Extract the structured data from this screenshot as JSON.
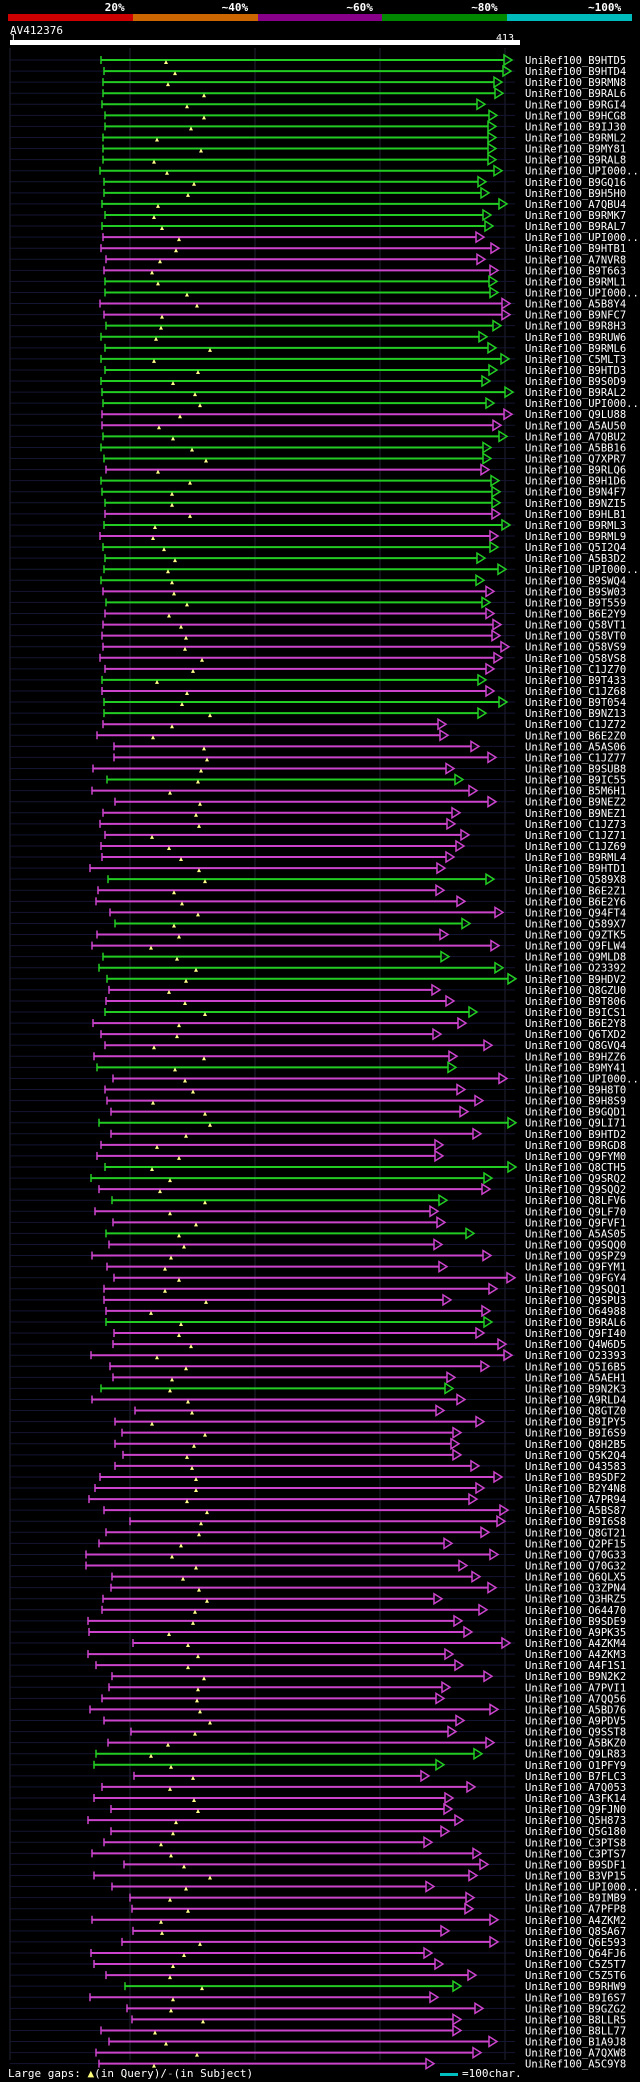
{
  "identity_bar": {
    "segments": [
      {
        "label": "20%",
        "color": "#cc0000"
      },
      {
        "label": "~40%",
        "color": "#cc6600"
      },
      {
        "label": "~60%",
        "color": "#880088"
      },
      {
        "label": "~80%",
        "color": "#008800"
      },
      {
        "label": "~100%",
        "color": "#00bbbb"
      }
    ]
  },
  "query": {
    "name": "AV412376",
    "start": "1",
    "end": "413"
  },
  "colors": {
    "green": "#22cc22",
    "magenta": "#cc44cc",
    "marker": "#ffff88"
  },
  "hits": [
    {
      "id": "UniRef100_B9HTD5",
      "c": "g"
    },
    {
      "id": "UniRef100_B9HTD4",
      "c": "g"
    },
    {
      "id": "UniRef100_B9RMN8",
      "c": "g"
    },
    {
      "id": "UniRef100_B9RAL6",
      "c": "g"
    },
    {
      "id": "UniRef100_B9RGI4",
      "c": "g"
    },
    {
      "id": "UniRef100_B9HCG8",
      "c": "g"
    },
    {
      "id": "UniRef100_B9IJ30",
      "c": "g"
    },
    {
      "id": "UniRef100_B9RML2",
      "c": "g"
    },
    {
      "id": "UniRef100_B9MY81",
      "c": "g"
    },
    {
      "id": "UniRef100_B9RAL8",
      "c": "g"
    },
    {
      "id": "UniRef100_UPI000..",
      "c": "g"
    },
    {
      "id": "UniRef100_B9GQ16",
      "c": "g"
    },
    {
      "id": "UniRef100_B9H5H0",
      "c": "g"
    },
    {
      "id": "UniRef100_A7QBU4",
      "c": "g"
    },
    {
      "id": "UniRef100_B9RMK7",
      "c": "g"
    },
    {
      "id": "UniRef100_B9RAL7",
      "c": "g"
    },
    {
      "id": "UniRef100_UPI000..",
      "c": "m"
    },
    {
      "id": "UniRef100_B9HTB1",
      "c": "m"
    },
    {
      "id": "UniRef100_A7NVR8",
      "c": "m"
    },
    {
      "id": "UniRef100_B9T663",
      "c": "m"
    },
    {
      "id": "UniRef100_B9RML1",
      "c": "g"
    },
    {
      "id": "UniRef100_UPI000..",
      "c": "g"
    },
    {
      "id": "UniRef100_A5B8Y4",
      "c": "m"
    },
    {
      "id": "UniRef100_B9NFC7",
      "c": "m"
    },
    {
      "id": "UniRef100_B9R8H3",
      "c": "g"
    },
    {
      "id": "UniRef100_B9RUW6",
      "c": "g"
    },
    {
      "id": "UniRef100_B9RML6",
      "c": "g"
    },
    {
      "id": "UniRef100_C5MLT3",
      "c": "g"
    },
    {
      "id": "UniRef100_B9HTD3",
      "c": "g"
    },
    {
      "id": "UniRef100_B9S0D9",
      "c": "g"
    },
    {
      "id": "UniRef100_B9RAL2",
      "c": "g"
    },
    {
      "id": "UniRef100_UPI000..",
      "c": "g"
    },
    {
      "id": "UniRef100_Q9LU88",
      "c": "m"
    },
    {
      "id": "UniRef100_A5AU50",
      "c": "m"
    },
    {
      "id": "UniRef100_A7QBU2",
      "c": "g"
    },
    {
      "id": "UniRef100_A5BB16",
      "c": "g"
    },
    {
      "id": "UniRef100_Q7XPR7",
      "c": "g"
    },
    {
      "id": "UniRef100_B9RLQ6",
      "c": "m"
    },
    {
      "id": "UniRef100_B9H1D6",
      "c": "g"
    },
    {
      "id": "UniRef100_B9N4F7",
      "c": "g"
    },
    {
      "id": "UniRef100_B9NZI5",
      "c": "g"
    },
    {
      "id": "UniRef100_B9HLB1",
      "c": "m"
    },
    {
      "id": "UniRef100_B9RML3",
      "c": "g"
    },
    {
      "id": "UniRef100_B9RML9",
      "c": "m"
    },
    {
      "id": "UniRef100_Q5I2Q4",
      "c": "g"
    },
    {
      "id": "UniRef100_A5B3D2",
      "c": "g"
    },
    {
      "id": "UniRef100_UPI000..",
      "c": "g"
    },
    {
      "id": "UniRef100_B9SWQ4",
      "c": "g"
    },
    {
      "id": "UniRef100_B9SW03",
      "c": "m"
    },
    {
      "id": "UniRef100_B9T559",
      "c": "g"
    },
    {
      "id": "UniRef100_B6E2Y9",
      "c": "m"
    },
    {
      "id": "UniRef100_Q58VT1",
      "c": "m"
    },
    {
      "id": "UniRef100_Q58VT0",
      "c": "m"
    },
    {
      "id": "UniRef100_Q58VS9",
      "c": "m"
    },
    {
      "id": "UniRef100_Q58VS8",
      "c": "m"
    },
    {
      "id": "UniRef100_C1JZ70",
      "c": "m"
    },
    {
      "id": "UniRef100_B9T433",
      "c": "g"
    },
    {
      "id": "UniRef100_C1JZ68",
      "c": "m"
    },
    {
      "id": "UniRef100_B9T054",
      "c": "g"
    },
    {
      "id": "UniRef100_B9NZ13",
      "c": "g"
    },
    {
      "id": "UniRef100_C1JZ72",
      "c": "m"
    },
    {
      "id": "UniRef100_B6E2Z0",
      "c": "m"
    },
    {
      "id": "UniRef100_A5AS06",
      "c": "m"
    },
    {
      "id": "UniRef100_C1JZ77",
      "c": "m"
    },
    {
      "id": "UniRef100_B9SUB8",
      "c": "m"
    },
    {
      "id": "UniRef100_B9IC55",
      "c": "g"
    },
    {
      "id": "UniRef100_B5M6H1",
      "c": "m"
    },
    {
      "id": "UniRef100_B9NEZ2",
      "c": "m"
    },
    {
      "id": "UniRef100_B9NEZ1",
      "c": "m"
    },
    {
      "id": "UniRef100_C1JZ73",
      "c": "m"
    },
    {
      "id": "UniRef100_C1JZ71",
      "c": "m"
    },
    {
      "id": "UniRef100_C1JZ69",
      "c": "m"
    },
    {
      "id": "UniRef100_B9RML4",
      "c": "m"
    },
    {
      "id": "UniRef100_B9HTD1",
      "c": "m"
    },
    {
      "id": "UniRef100_Q589X8",
      "c": "g"
    },
    {
      "id": "UniRef100_B6E2Z1",
      "c": "m"
    },
    {
      "id": "UniRef100_B6E2Y6",
      "c": "m"
    },
    {
      "id": "UniRef100_Q94FT4",
      "c": "m"
    },
    {
      "id": "UniRef100_Q589X7",
      "c": "g"
    },
    {
      "id": "UniRef100_Q9ZTK5",
      "c": "m"
    },
    {
      "id": "UniRef100_Q9FLW4",
      "c": "m"
    },
    {
      "id": "UniRef100_Q9MLD8",
      "c": "g"
    },
    {
      "id": "UniRef100_O23392",
      "c": "g"
    },
    {
      "id": "UniRef100_B9HDV2",
      "c": "g"
    },
    {
      "id": "UniRef100_Q8GZU0",
      "c": "m"
    },
    {
      "id": "UniRef100_B9T806",
      "c": "m"
    },
    {
      "id": "UniRef100_B9ICS1",
      "c": "g"
    },
    {
      "id": "UniRef100_B6E2Y8",
      "c": "m"
    },
    {
      "id": "UniRef100_Q6TXD2",
      "c": "m"
    },
    {
      "id": "UniRef100_Q8GVQ4",
      "c": "m"
    },
    {
      "id": "UniRef100_B9HZZ6",
      "c": "m"
    },
    {
      "id": "UniRef100_B9MY41",
      "c": "g"
    },
    {
      "id": "UniRef100_UPI000..",
      "c": "m"
    },
    {
      "id": "UniRef100_B9H8T0",
      "c": "m"
    },
    {
      "id": "UniRef100_B9H8S9",
      "c": "m"
    },
    {
      "id": "UniRef100_B9GQD1",
      "c": "m"
    },
    {
      "id": "UniRef100_Q9LI71",
      "c": "g"
    },
    {
      "id": "UniRef100_B9HTD2",
      "c": "m"
    },
    {
      "id": "UniRef100_B9RGD8",
      "c": "m"
    },
    {
      "id": "UniRef100_Q9FYM0",
      "c": "m"
    },
    {
      "id": "UniRef100_Q8CTH5",
      "c": "g"
    },
    {
      "id": "UniRef100_Q9SRQ2",
      "c": "g"
    },
    {
      "id": "UniRef100_Q9SQQ2",
      "c": "m"
    },
    {
      "id": "UniRef100_Q8LFV6",
      "c": "g"
    },
    {
      "id": "UniRef100_Q9LF70",
      "c": "m"
    },
    {
      "id": "UniRef100_Q9FVF1",
      "c": "m"
    },
    {
      "id": "UniRef100_A5AS05",
      "c": "g"
    },
    {
      "id": "UniRef100_Q9SQQ0",
      "c": "m"
    },
    {
      "id": "UniRef100_Q9SPZ9",
      "c": "m"
    },
    {
      "id": "UniRef100_Q9FYM1",
      "c": "m"
    },
    {
      "id": "UniRef100_Q9FGY4",
      "c": "m"
    },
    {
      "id": "UniRef100_Q9SQQ1",
      "c": "m"
    },
    {
      "id": "UniRef100_Q9SPU3",
      "c": "m"
    },
    {
      "id": "UniRef100_O64988",
      "c": "m"
    },
    {
      "id": "UniRef100_B9RAL6",
      "c": "g"
    },
    {
      "id": "UniRef100_Q9FI40",
      "c": "m"
    },
    {
      "id": "UniRef100_Q4W6D5",
      "c": "m"
    },
    {
      "id": "UniRef100_O23393",
      "c": "m"
    },
    {
      "id": "UniRef100_Q5I6B5",
      "c": "m"
    },
    {
      "id": "UniRef100_A5AEH1",
      "c": "m"
    },
    {
      "id": "UniRef100_B9N2K3",
      "c": "g"
    },
    {
      "id": "UniRef100_A9RLD4",
      "c": "m"
    },
    {
      "id": "UniRef100_Q8GTZ0",
      "c": "m"
    },
    {
      "id": "UniRef100_B9IPY5",
      "c": "m"
    },
    {
      "id": "UniRef100_B9I6S9",
      "c": "m"
    },
    {
      "id": "UniRef100_Q8H2B5",
      "c": "m"
    },
    {
      "id": "UniRef100_Q5K2Q4",
      "c": "m"
    },
    {
      "id": "UniRef100_O43583",
      "c": "m"
    },
    {
      "id": "UniRef100_B9SDF2",
      "c": "m"
    },
    {
      "id": "UniRef100_B2Y4N8",
      "c": "m"
    },
    {
      "id": "UniRef100_A7PR94",
      "c": "m"
    },
    {
      "id": "UniRef100_A5BS87",
      "c": "m"
    },
    {
      "id": "UniRef100_B9I6S8",
      "c": "m"
    },
    {
      "id": "UniRef100_Q8GT21",
      "c": "m"
    },
    {
      "id": "UniRef100_Q2PF15",
      "c": "m"
    },
    {
      "id": "UniRef100_Q70G33",
      "c": "m"
    },
    {
      "id": "UniRef100_Q70G32",
      "c": "m"
    },
    {
      "id": "UniRef100_Q6QLX5",
      "c": "m"
    },
    {
      "id": "UniRef100_Q3ZPN4",
      "c": "m"
    },
    {
      "id": "UniRef100_Q3HRZ5",
      "c": "m"
    },
    {
      "id": "UniRef100_O64470",
      "c": "m"
    },
    {
      "id": "UniRef100_B9SDE9",
      "c": "m"
    },
    {
      "id": "UniRef100_A9PK35",
      "c": "m"
    },
    {
      "id": "UniRef100_A4ZKM4",
      "c": "m"
    },
    {
      "id": "UniRef100_A4ZKM3",
      "c": "m"
    },
    {
      "id": "UniRef100_A4F1S1",
      "c": "m"
    },
    {
      "id": "UniRef100_B9N2K2",
      "c": "m"
    },
    {
      "id": "UniRef100_A7PVI1",
      "c": "m"
    },
    {
      "id": "UniRef100_A7QQ56",
      "c": "m"
    },
    {
      "id": "UniRef100_A5BD76",
      "c": "m"
    },
    {
      "id": "UniRef100_A9PDV5",
      "c": "m"
    },
    {
      "id": "UniRef100_Q9SST8",
      "c": "m"
    },
    {
      "id": "UniRef100_A5BKZ0",
      "c": "m"
    },
    {
      "id": "UniRef100_Q9LR83",
      "c": "g"
    },
    {
      "id": "UniRef100_O1PFY9",
      "c": "g"
    },
    {
      "id": "UniRef100_B7FLC3",
      "c": "m"
    },
    {
      "id": "UniRef100_A7Q053",
      "c": "m"
    },
    {
      "id": "UniRef100_A3FK14",
      "c": "m"
    },
    {
      "id": "UniRef100_Q9FJN0",
      "c": "m"
    },
    {
      "id": "UniRef100_Q5H873",
      "c": "m"
    },
    {
      "id": "UniRef100_Q5G180",
      "c": "m"
    },
    {
      "id": "UniRef100_C3PTS8",
      "c": "m"
    },
    {
      "id": "UniRef100_C3PTS7",
      "c": "m"
    },
    {
      "id": "UniRef100_B9SDF1",
      "c": "m"
    },
    {
      "id": "UniRef100_B3VP15",
      "c": "m"
    },
    {
      "id": "UniRef100_UPI000..",
      "c": "m"
    },
    {
      "id": "UniRef100_B9IMB9",
      "c": "m"
    },
    {
      "id": "UniRef100_A7PFP8",
      "c": "m"
    },
    {
      "id": "UniRef100_A4ZKM2",
      "c": "m"
    },
    {
      "id": "UniRef100_Q8SA67",
      "c": "m"
    },
    {
      "id": "UniRef100_Q6E593",
      "c": "m"
    },
    {
      "id": "UniRef100_Q64FJ6",
      "c": "m"
    },
    {
      "id": "UniRef100_C5Z5T7",
      "c": "m"
    },
    {
      "id": "UniRef100_C5Z5T6",
      "c": "m"
    },
    {
      "id": "UniRef100_B9RHW9",
      "c": "g"
    },
    {
      "id": "UniRef100_B9I6S7",
      "c": "m"
    },
    {
      "id": "UniRef100_B9GZG2",
      "c": "m"
    },
    {
      "id": "UniRef100_B8LLR5",
      "c": "m"
    },
    {
      "id": "UniRef100_B8LL77",
      "c": "m"
    },
    {
      "id": "UniRef100_B1A9J8",
      "c": "m"
    },
    {
      "id": "UniRef100_A7QXW8",
      "c": "m"
    },
    {
      "id": "UniRef100_A5C9Y8",
      "c": "m"
    }
  ],
  "footer": {
    "left_prefix": "Large gaps: ",
    "left_query": "(in Query)/",
    "left_subject": "(in Subject)",
    "scale": "=100char."
  }
}
